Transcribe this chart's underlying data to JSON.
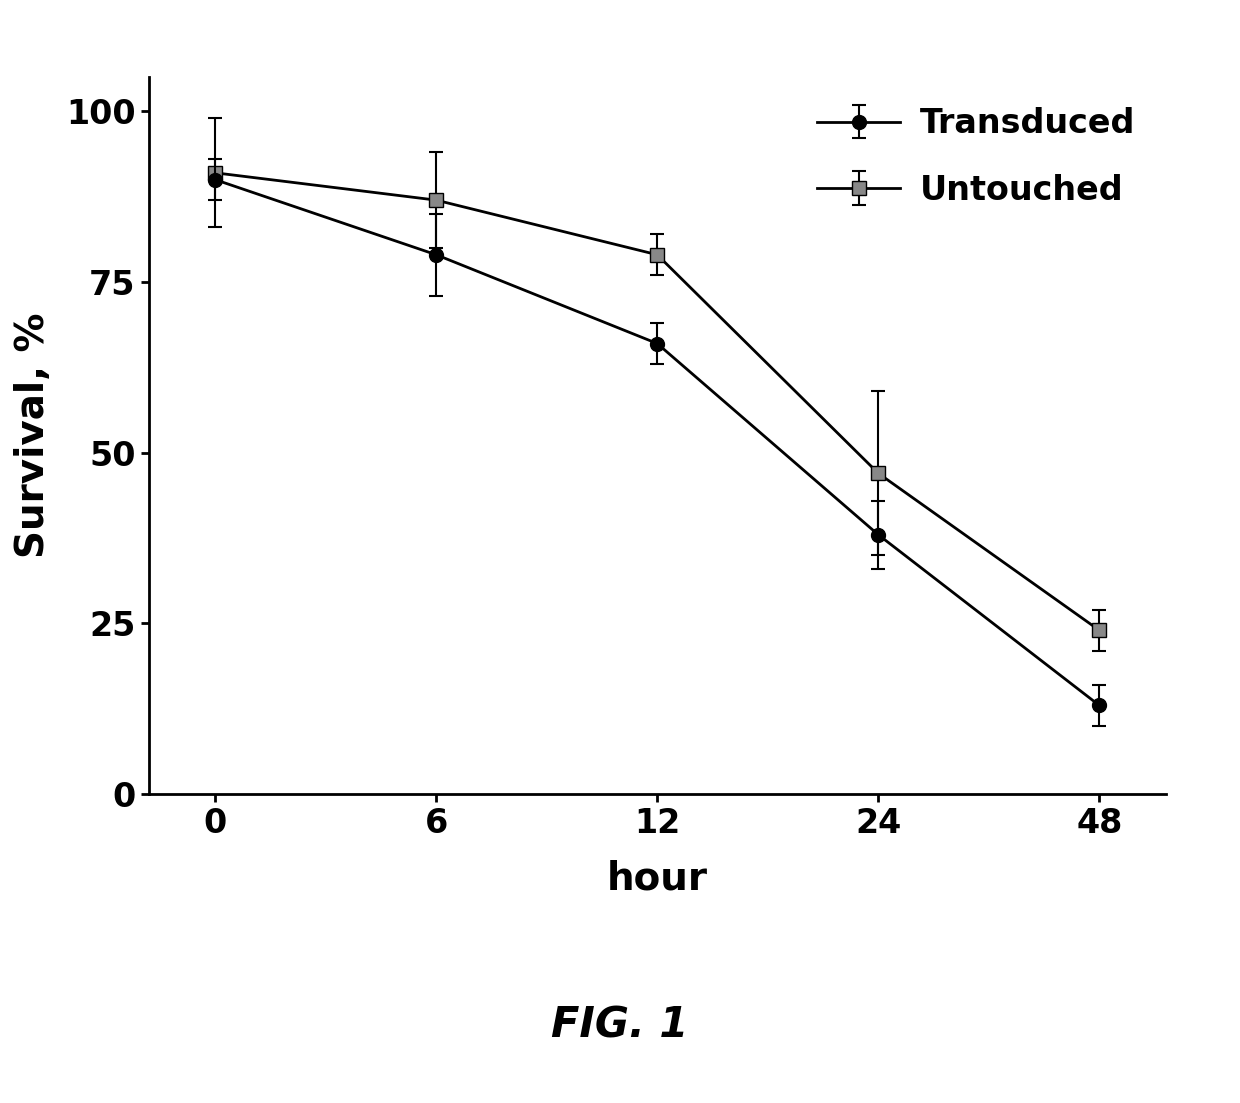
{
  "x_labels": [
    "0",
    "6",
    "12",
    "24",
    "48"
  ],
  "x_positions": [
    0,
    1,
    2,
    3,
    4
  ],
  "transduced_y": [
    90,
    79,
    66,
    38,
    13
  ],
  "transduced_err": [
    3,
    6,
    3,
    5,
    3
  ],
  "untouched_y": [
    91,
    87,
    79,
    47,
    24
  ],
  "untouched_err": [
    8,
    7,
    3,
    12,
    3
  ],
  "xlabel": "hour",
  "ylabel": "Survival, %",
  "ylim": [
    0,
    105
  ],
  "yticks": [
    0,
    25,
    50,
    75,
    100
  ],
  "legend_transduced": "Transduced",
  "legend_untouched": "Untouched",
  "line_color": "#000000",
  "untouched_marker_color": "#888888",
  "fig_caption": "FIG. 1",
  "background_color": "#ffffff"
}
